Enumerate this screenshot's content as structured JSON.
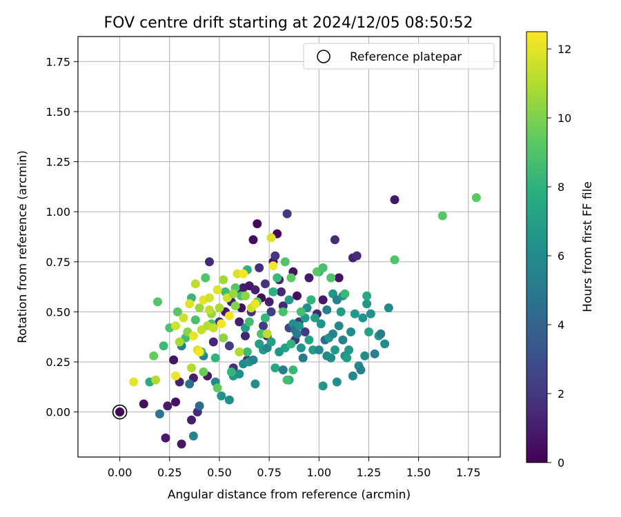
{
  "chart_data": {
    "type": "scatter",
    "title": "FOV centre drift starting at 2024/12/05 08:50:52",
    "xlabel": "Angular distance from reference (arcmin)",
    "ylabel": "Rotation from reference (arcmin)",
    "xlim": [
      -0.21,
      1.91
    ],
    "ylim": [
      -0.225,
      1.875
    ],
    "xticks": [
      "0.00",
      "0.25",
      "0.50",
      "0.75",
      "1.00",
      "1.25",
      "1.50",
      "1.75"
    ],
    "yticks": [
      "0.00",
      "0.25",
      "0.50",
      "0.75",
      "1.00",
      "1.25",
      "1.50",
      "1.75"
    ],
    "grid": true,
    "legend": {
      "position": "top-right",
      "label": "Reference platepar"
    },
    "reference_point": {
      "x": 0.0,
      "y": 0.0
    },
    "colorbar": {
      "label": "Hours from first FF file",
      "colormap": "viridis",
      "range": [
        0,
        12.5
      ],
      "ticks": [
        "0",
        "2",
        "4",
        "6",
        "8",
        "10",
        "12"
      ]
    },
    "points": [
      [
        0.0,
        0.0,
        0.3
      ],
      [
        0.12,
        0.04,
        0.5
      ],
      [
        0.24,
        0.03,
        1.0
      ],
      [
        0.28,
        0.05,
        0.6
      ],
      [
        0.3,
        0.15,
        1.2
      ],
      [
        0.31,
        -0.16,
        0.8
      ],
      [
        0.36,
        -0.04,
        1.0
      ],
      [
        0.39,
        0.0,
        1.5
      ],
      [
        0.23,
        -0.13,
        0.9
      ],
      [
        0.27,
        0.26,
        0.7
      ],
      [
        0.37,
        0.17,
        1.1
      ],
      [
        0.44,
        0.18,
        0.9
      ],
      [
        0.47,
        0.35,
        1.3
      ],
      [
        0.5,
        0.45,
        1.6
      ],
      [
        0.45,
        0.75,
        1.4
      ],
      [
        0.53,
        0.5,
        0.9
      ],
      [
        0.56,
        0.55,
        1.2
      ],
      [
        0.59,
        0.6,
        1.5
      ],
      [
        0.62,
        0.62,
        1.0
      ],
      [
        0.65,
        0.63,
        0.8
      ],
      [
        0.67,
        0.86,
        0.4
      ],
      [
        0.69,
        0.94,
        0.3
      ],
      [
        0.7,
        0.72,
        1.6
      ],
      [
        0.73,
        0.64,
        1.8
      ],
      [
        0.75,
        0.55,
        1.1
      ],
      [
        0.77,
        0.75,
        0.7
      ],
      [
        0.78,
        0.78,
        1.9
      ],
      [
        0.79,
        0.89,
        0.2
      ],
      [
        0.8,
        0.66,
        1.3
      ],
      [
        0.82,
        0.53,
        1.4
      ],
      [
        0.84,
        0.99,
        2.0
      ],
      [
        0.87,
        0.7,
        0.6
      ],
      [
        0.89,
        0.58,
        0.5
      ],
      [
        0.9,
        0.45,
        1.7
      ],
      [
        0.93,
        0.4,
        2.1
      ],
      [
        0.95,
        0.67,
        0.9
      ],
      [
        0.99,
        0.49,
        1.3
      ],
      [
        1.02,
        0.56,
        0.8
      ],
      [
        1.08,
        0.86,
        1.5
      ],
      [
        1.1,
        0.67,
        0.7
      ],
      [
        1.17,
        0.77,
        1.2
      ],
      [
        1.19,
        0.78,
        1.6
      ],
      [
        1.38,
        1.06,
        0.8
      ],
      [
        0.6,
        0.45,
        1.0
      ],
      [
        0.63,
        0.38,
        1.3
      ],
      [
        0.66,
        0.5,
        1.8
      ],
      [
        0.72,
        0.43,
        2.2
      ],
      [
        0.76,
        0.5,
        2.4
      ],
      [
        0.85,
        0.42,
        2.6
      ],
      [
        0.88,
        0.36,
        1.9
      ],
      [
        0.57,
        0.22,
        1.7
      ],
      [
        0.55,
        0.33,
        2.3
      ],
      [
        0.64,
        0.26,
        2.0
      ],
      [
        0.68,
        0.61,
        1.1
      ],
      [
        0.81,
        0.6,
        1.4
      ],
      [
        0.74,
        0.38,
        0.6
      ],
      [
        0.61,
        0.52,
        0.5
      ],
      [
        0.71,
        0.57,
        0.4
      ],
      [
        0.2,
        -0.01,
        4.9
      ],
      [
        0.31,
        0.33,
        5.2
      ],
      [
        0.35,
        0.14,
        4.6
      ],
      [
        0.37,
        -0.12,
        5.6
      ],
      [
        0.4,
        0.03,
        4.3
      ],
      [
        0.42,
        0.28,
        5.4
      ],
      [
        0.48,
        0.15,
        5.8
      ],
      [
        0.51,
        0.08,
        6.3
      ],
      [
        0.55,
        0.06,
        6.0
      ],
      [
        0.57,
        0.18,
        6.6
      ],
      [
        0.6,
        0.19,
        6.2
      ],
      [
        0.62,
        0.24,
        5.9
      ],
      [
        0.63,
        0.42,
        6.8
      ],
      [
        0.65,
        0.25,
        6.4
      ],
      [
        0.67,
        0.26,
        5.5
      ],
      [
        0.68,
        0.14,
        6.1
      ],
      [
        0.7,
        0.34,
        7.0
      ],
      [
        0.72,
        0.31,
        6.7
      ],
      [
        0.74,
        0.32,
        5.7
      ],
      [
        0.76,
        0.35,
        6.9
      ],
      [
        0.78,
        0.22,
        7.3
      ],
      [
        0.8,
        0.3,
        6.5
      ],
      [
        0.82,
        0.21,
        5.3
      ],
      [
        0.83,
        0.32,
        7.1
      ],
      [
        0.85,
        0.16,
        7.5
      ],
      [
        0.87,
        0.44,
        6.0
      ],
      [
        0.88,
        0.41,
        4.8
      ],
      [
        0.89,
        0.39,
        5.1
      ],
      [
        0.91,
        0.32,
        6.4
      ],
      [
        0.92,
        0.27,
        5.0
      ],
      [
        0.93,
        0.47,
        6.7
      ],
      [
        0.95,
        0.36,
        7.2
      ],
      [
        0.97,
        0.31,
        6.8
      ],
      [
        0.98,
        0.47,
        6.9
      ],
      [
        1.0,
        0.31,
        5.8
      ],
      [
        1.01,
        0.44,
        6.3
      ],
      [
        1.02,
        0.13,
        6.6
      ],
      [
        1.03,
        0.36,
        4.4
      ],
      [
        1.04,
        0.28,
        5.9
      ],
      [
        1.05,
        0.37,
        6.5
      ],
      [
        1.06,
        0.27,
        6.1
      ],
      [
        1.07,
        0.39,
        5.6
      ],
      [
        1.08,
        0.31,
        6.8
      ],
      [
        1.09,
        0.15,
        6.2
      ],
      [
        1.1,
        0.43,
        5.7
      ],
      [
        1.11,
        0.5,
        6.9
      ],
      [
        1.12,
        0.36,
        5.5
      ],
      [
        1.13,
        0.28,
        6.3
      ],
      [
        1.14,
        0.27,
        7.0
      ],
      [
        1.15,
        0.31,
        6.6
      ],
      [
        1.16,
        0.4,
        6.2
      ],
      [
        1.17,
        0.18,
        5.9
      ],
      [
        1.18,
        0.49,
        6.7
      ],
      [
        1.2,
        0.23,
        5.8
      ],
      [
        1.21,
        0.21,
        5.4
      ],
      [
        1.22,
        0.47,
        6.4
      ],
      [
        1.23,
        0.28,
        6.0
      ],
      [
        1.24,
        0.54,
        6.6
      ],
      [
        1.25,
        0.4,
        7.1
      ],
      [
        1.26,
        0.49,
        6.3
      ],
      [
        1.28,
        0.29,
        5.5
      ],
      [
        1.3,
        0.38,
        6.8
      ],
      [
        1.31,
        0.39,
        5.2
      ],
      [
        1.33,
        0.34,
        6.1
      ],
      [
        1.35,
        0.52,
        5.9
      ],
      [
        1.24,
        0.58,
        7.6
      ],
      [
        1.07,
        0.59,
        6.5
      ],
      [
        1.04,
        0.51,
        5.3
      ],
      [
        0.94,
        0.52,
        6.0
      ],
      [
        0.9,
        0.43,
        6.4
      ],
      [
        1.09,
        0.56,
        5.4
      ],
      [
        1.12,
        0.58,
        6.2
      ],
      [
        0.96,
        0.56,
        7.4
      ],
      [
        1.0,
        0.7,
        7.8
      ],
      [
        0.85,
        0.56,
        6.8
      ],
      [
        0.15,
        0.15,
        7.7
      ],
      [
        0.22,
        0.33,
        8.4
      ],
      [
        0.25,
        0.42,
        8.9
      ],
      [
        0.29,
        0.5,
        9.2
      ],
      [
        0.33,
        0.37,
        8.6
      ],
      [
        0.36,
        0.57,
        8.3
      ],
      [
        0.38,
        0.46,
        8.8
      ],
      [
        0.41,
        0.3,
        8.0
      ],
      [
        0.43,
        0.67,
        9.0
      ],
      [
        0.46,
        0.44,
        8.7
      ],
      [
        0.48,
        0.27,
        8.1
      ],
      [
        0.49,
        0.12,
        9.4
      ],
      [
        0.53,
        0.6,
        8.5
      ],
      [
        0.56,
        0.2,
        8.2
      ],
      [
        0.58,
        0.62,
        9.1
      ],
      [
        0.61,
        0.58,
        8.8
      ],
      [
        0.64,
        0.71,
        8.0
      ],
      [
        0.65,
        0.45,
        8.6
      ],
      [
        0.69,
        0.55,
        9.3
      ],
      [
        0.71,
        0.39,
        8.9
      ],
      [
        0.73,
        0.47,
        8.2
      ],
      [
        0.77,
        0.6,
        7.9
      ],
      [
        0.79,
        0.67,
        8.4
      ],
      [
        0.82,
        0.5,
        8.8
      ],
      [
        0.83,
        0.75,
        9.0
      ],
      [
        0.86,
        0.67,
        9.4
      ],
      [
        0.87,
        0.21,
        8.3
      ],
      [
        0.91,
        0.5,
        8.7
      ],
      [
        0.96,
        0.56,
        8.1
      ],
      [
        0.99,
        0.7,
        9.2
      ],
      [
        1.02,
        0.72,
        8.8
      ],
      [
        1.06,
        0.67,
        9.0
      ],
      [
        1.13,
        0.59,
        8.4
      ],
      [
        0.84,
        0.16,
        8.6
      ],
      [
        0.19,
        0.55,
        9.1
      ],
      [
        0.17,
        0.28,
        9.5
      ],
      [
        1.62,
        0.98,
        9.2
      ],
      [
        1.79,
        1.07,
        9.3
      ],
      [
        1.38,
        0.76,
        9.0
      ],
      [
        0.86,
        0.34,
        8.0
      ],
      [
        0.64,
        0.3,
        8.5
      ],
      [
        0.42,
        0.2,
        9.6
      ],
      [
        0.07,
        0.15,
        12.0
      ],
      [
        0.18,
        0.16,
        11.0
      ],
      [
        0.28,
        0.18,
        12.2
      ],
      [
        0.3,
        0.35,
        10.8
      ],
      [
        0.32,
        0.47,
        11.5
      ],
      [
        0.34,
        0.4,
        10.2
      ],
      [
        0.35,
        0.54,
        11.9
      ],
      [
        0.37,
        0.38,
        12.1
      ],
      [
        0.38,
        0.64,
        11.2
      ],
      [
        0.39,
        0.31,
        11.8
      ],
      [
        0.4,
        0.52,
        10.6
      ],
      [
        0.41,
        0.41,
        11.4
      ],
      [
        0.42,
        0.56,
        12.0
      ],
      [
        0.44,
        0.43,
        11.1
      ],
      [
        0.45,
        0.57,
        11.7
      ],
      [
        0.46,
        0.49,
        10.4
      ],
      [
        0.47,
        0.42,
        11.3
      ],
      [
        0.49,
        0.61,
        11.9
      ],
      [
        0.5,
        0.52,
        10.9
      ],
      [
        0.51,
        0.44,
        12.3
      ],
      [
        0.52,
        0.66,
        10.7
      ],
      [
        0.54,
        0.57,
        11.6
      ],
      [
        0.55,
        0.48,
        12.2
      ],
      [
        0.57,
        0.59,
        10.5
      ],
      [
        0.59,
        0.69,
        11.8
      ],
      [
        0.62,
        0.69,
        12.4
      ],
      [
        0.63,
        0.58,
        10.3
      ],
      [
        0.66,
        0.52,
        11.5
      ],
      [
        0.68,
        0.54,
        12.1
      ],
      [
        0.76,
        0.87,
        11.9
      ],
      [
        0.77,
        0.73,
        12.3
      ],
      [
        0.52,
        0.37,
        10.3
      ],
      [
        0.28,
        0.43,
        11.6
      ],
      [
        0.4,
        0.3,
        12.4
      ],
      [
        0.36,
        0.22,
        11.0
      ],
      [
        0.74,
        0.39,
        11.2
      ],
      [
        0.6,
        0.3,
        10.9
      ],
      [
        0.58,
        0.53,
        10.1
      ],
      [
        0.45,
        0.51,
        11.3
      ]
    ]
  }
}
